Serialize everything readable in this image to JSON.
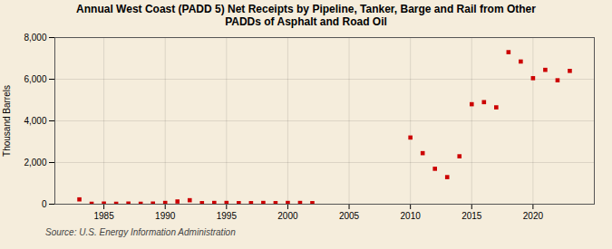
{
  "chart_data": {
    "type": "scatter",
    "title": "Annual West Coast (PADD 5) Net Receipts by Pipeline, Tanker, Barge and Rail from Other\nPADDs of Asphalt and Road Oil",
    "ylabel": "Thousand Barrels",
    "annotations": [
      "Source: U.S. Energy Information Administration"
    ],
    "background_color": "#f5eddc",
    "color": "#cc0000",
    "marker": "square",
    "x": [
      1983,
      1984,
      1985,
      1986,
      1987,
      1988,
      1989,
      1990,
      1991,
      1992,
      1993,
      1994,
      1995,
      1996,
      1997,
      1998,
      1999,
      2000,
      2001,
      2002,
      2010,
      2011,
      2012,
      2013,
      2014,
      2015,
      2016,
      2017,
      2018,
      2019,
      2020,
      2021,
      2022,
      2023
    ],
    "values": [
      230,
      20,
      30,
      20,
      30,
      20,
      30,
      60,
      130,
      190,
      50,
      60,
      60,
      50,
      50,
      60,
      50,
      60,
      60,
      50,
      3200,
      2450,
      1700,
      1300,
      2300,
      4800,
      4900,
      4650,
      7300,
      6850,
      6050,
      6450,
      5950,
      6400
    ],
    "xlim": [
      1981,
      2025
    ],
    "ylim": [
      0,
      8000
    ],
    "xticks": [
      1985,
      1990,
      1995,
      2000,
      2005,
      2010,
      2015,
      2020
    ],
    "yticks": [
      0,
      {
        "value": 2000,
        "label": "2,000"
      },
      {
        "value": 4000,
        "label": "4,000"
      },
      {
        "value": 6000,
        "label": "6,000"
      },
      {
        "value": 8000,
        "label": "8,000"
      }
    ],
    "grid": true
  }
}
